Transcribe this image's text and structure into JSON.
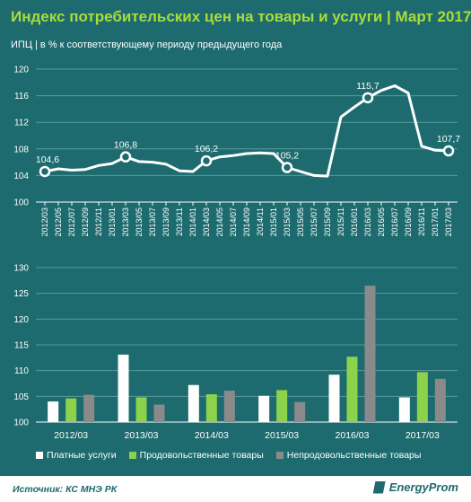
{
  "title": "Индекс потребительских  цен на товары  и услуги  | Март 2017",
  "subtitle": "ИПЦ  | в % к соответствующему  периоду  предыдущего  года",
  "source": "Источник: КС МНЭ РК",
  "brand": "EnergyProm",
  "colors": {
    "background": "#1d6b6e",
    "title": "#a8dc3a",
    "paid_services": "#ffffff",
    "food": "#8cd24a",
    "nonfood": "#8a8a8a"
  },
  "chart_data": [
    {
      "type": "line",
      "x": [
        "2012/03",
        "2012/05",
        "2012/07",
        "2012/09",
        "2012/11",
        "2013/01",
        "2013/03",
        "2013/05",
        "2013/07",
        "2013/09",
        "2013/11",
        "2014/01",
        "2014/03",
        "2014/05",
        "2014/07",
        "2014/09",
        "2014/11",
        "2015/01",
        "2015/03",
        "2015/05",
        "2015/07",
        "2015/09",
        "2015/11",
        "2016/01",
        "2016/03",
        "2016/05",
        "2016/07",
        "2016/09",
        "2016/11",
        "2017/01",
        "2017/03"
      ],
      "values": [
        104.6,
        105.0,
        104.8,
        104.9,
        105.5,
        105.8,
        106.8,
        106.1,
        106.0,
        105.7,
        104.7,
        104.6,
        106.2,
        106.8,
        107.0,
        107.3,
        107.4,
        107.3,
        105.2,
        104.6,
        104.0,
        103.9,
        112.8,
        114.3,
        115.7,
        116.8,
        117.5,
        116.4,
        108.4,
        107.8,
        107.7
      ],
      "labels": [
        {
          "x": "2012/03",
          "text": "104,6"
        },
        {
          "x": "2013/03",
          "text": "106,8"
        },
        {
          "x": "2014/03",
          "text": "106,2"
        },
        {
          "x": "2015/03",
          "text": "105,2"
        },
        {
          "x": "2016/03",
          "text": "115,7"
        },
        {
          "x": "2017/03",
          "text": "107,7"
        }
      ],
      "yticks": [
        100,
        104,
        108,
        112,
        116,
        120
      ],
      "ylim": [
        100,
        120
      ],
      "grid": true
    },
    {
      "type": "bar",
      "categories": [
        "2012/03",
        "2013/03",
        "2014/03",
        "2015/03",
        "2016/03",
        "2017/03"
      ],
      "series": [
        {
          "name": "Платные услуги",
          "color": "#ffffff",
          "values": [
            104.0,
            113.1,
            107.2,
            105.1,
            109.2,
            104.8
          ]
        },
        {
          "name": "Продовольственные товары",
          "color": "#8cd24a",
          "values": [
            104.6,
            104.8,
            105.4,
            106.2,
            112.7,
            109.7
          ]
        },
        {
          "name": "Непродовольственные товары",
          "color": "#8a8a8a",
          "values": [
            105.3,
            103.4,
            106.1,
            103.9,
            126.5,
            108.4
          ]
        }
      ],
      "yticks": [
        100,
        105,
        110,
        115,
        120,
        125,
        130
      ],
      "ylim": [
        100,
        130
      ],
      "legend": "bottom"
    }
  ]
}
